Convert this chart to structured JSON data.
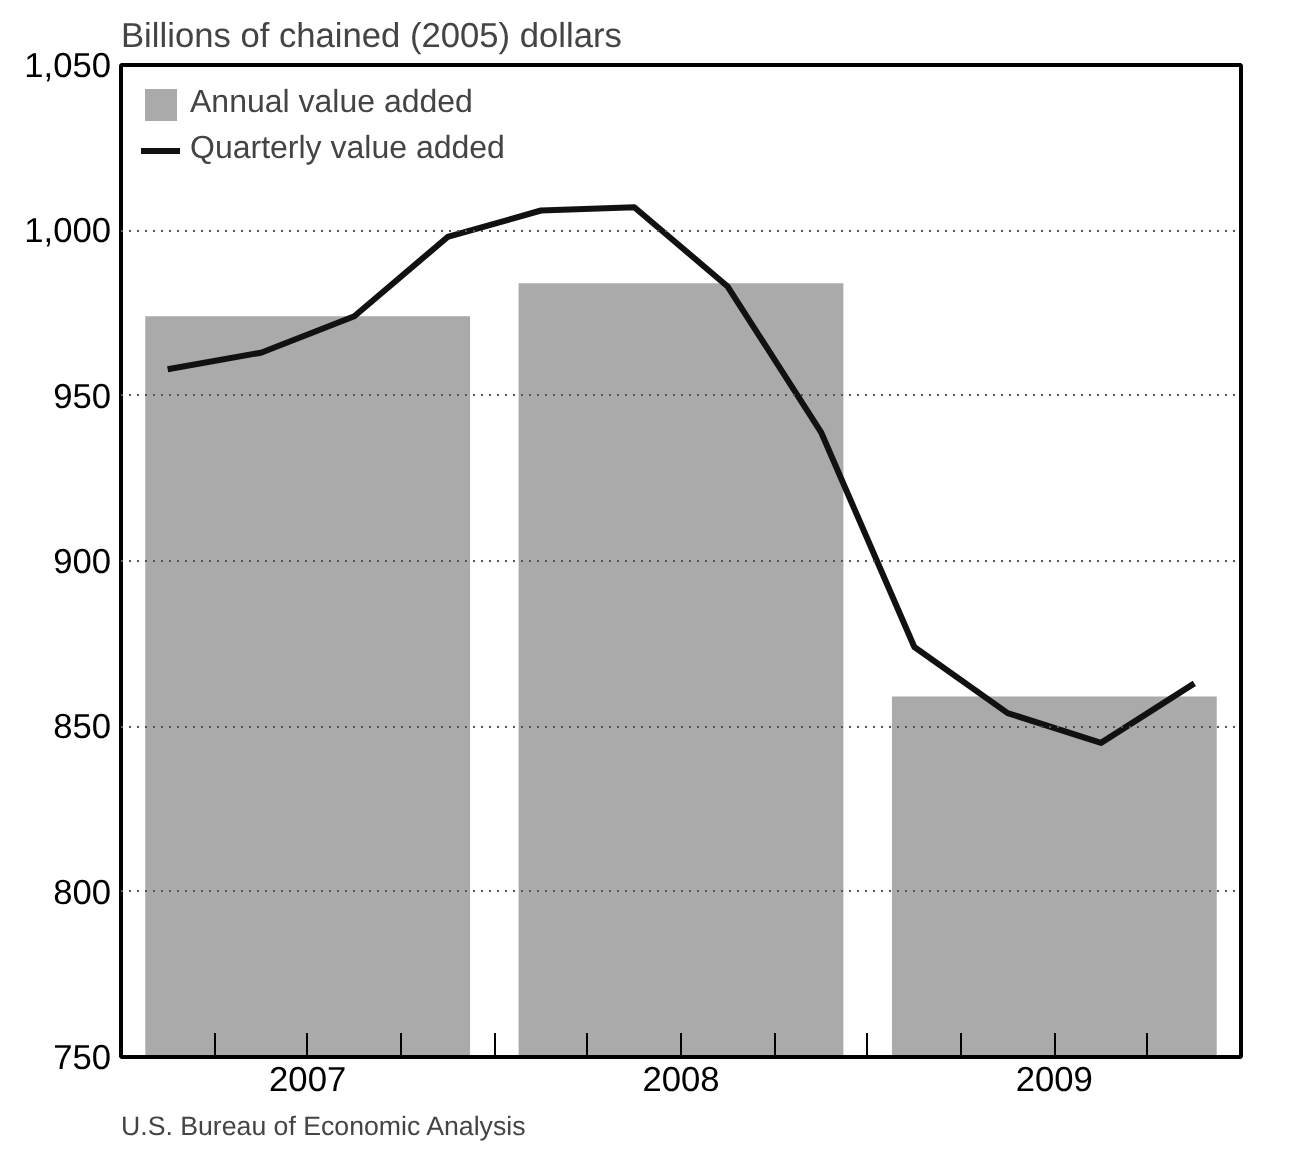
{
  "chart_data": {
    "type": "bar",
    "ylabel": "Billions of chained (2005) dollars",
    "x": [
      2007.5,
      2008.5,
      2009.5
    ],
    "series": [
      {
        "name": "Annual value added",
        "color": "#aaaaaa",
        "values": [
          974,
          984,
          859
        ]
      },
      {
        "name": "Quarterly value added",
        "type": "line",
        "color": "#111111",
        "x": [
          2007.125,
          2007.375,
          2007.625,
          2007.875,
          2008.125,
          2008.375,
          2008.625,
          2008.875,
          2009.125,
          2009.375,
          2009.625,
          2009.875
        ],
        "values": [
          958,
          963,
          974,
          998,
          1006,
          1007,
          983,
          939,
          874,
          854,
          845,
          863
        ]
      }
    ],
    "xlim": [
      2007,
      2010
    ],
    "xticks": [
      {
        "value": 2007.25,
        "label": null
      },
      {
        "value": 2007.5,
        "label": "2007"
      },
      {
        "value": 2007.75,
        "label": null
      },
      {
        "value": 2008,
        "label": null
      },
      {
        "value": 2008.25,
        "label": null
      },
      {
        "value": 2008.5,
        "label": "2008"
      },
      {
        "value": 2008.75,
        "label": null
      },
      {
        "value": 2009,
        "label": null
      },
      {
        "value": 2009.25,
        "label": null
      },
      {
        "value": 2009.5,
        "label": "2009"
      },
      {
        "value": 2009.75,
        "label": null
      }
    ],
    "ylim": [
      750,
      1050
    ],
    "yticks": [
      {
        "value": 750,
        "label": "750"
      },
      {
        "value": 800,
        "label": "800"
      },
      {
        "value": 850,
        "label": "850"
      },
      {
        "value": 900,
        "label": "900"
      },
      {
        "value": 950,
        "label": "950"
      },
      {
        "value": 1000,
        "label": "1,000"
      },
      {
        "value": 1050,
        "label": "1,050"
      }
    ],
    "grid": "y",
    "legend": "top left",
    "annotations": [
      "U.S. Bureau of Economic Analysis"
    ]
  }
}
